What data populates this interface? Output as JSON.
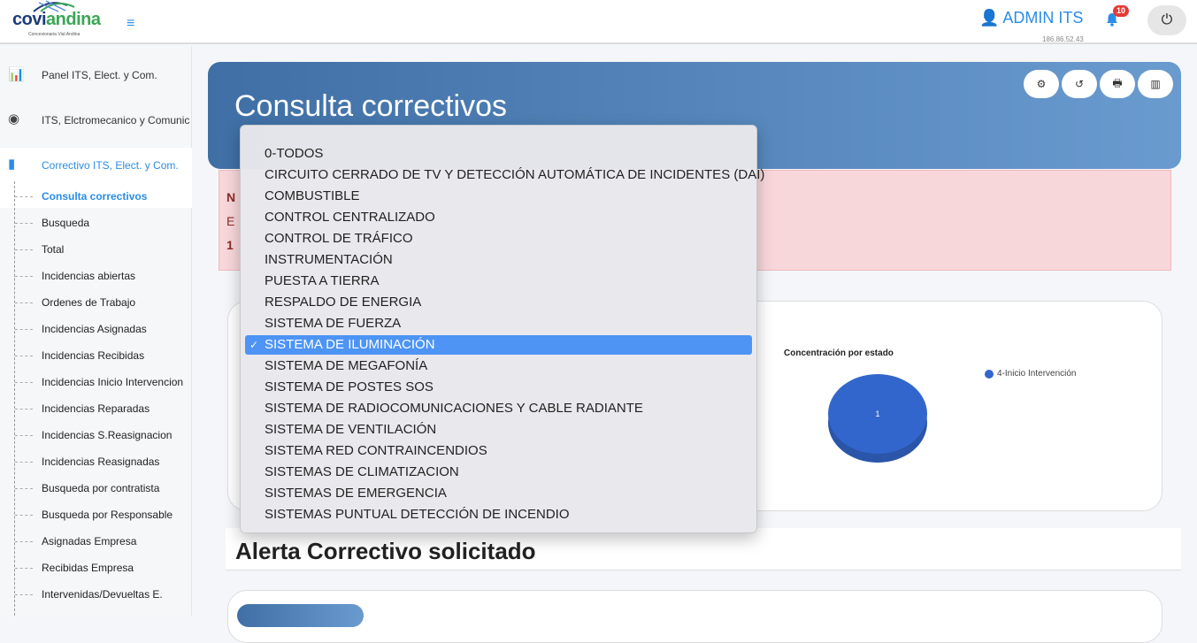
{
  "header": {
    "logo_text": "coviandina",
    "logo_subtitle": "Concesionaria Vial Andina",
    "user": "ADMIN ITS",
    "ip": "186.86.52.43",
    "notifications": "10"
  },
  "sidebar": {
    "top_items": [
      {
        "label": "Panel ITS, Elect. y Com.",
        "icon": "bar-chart-icon"
      },
      {
        "label": "ITS, Elctromecanico y Comunicaciones",
        "icon": "podcast-icon"
      }
    ],
    "active_section": {
      "label": "Correctivo ITS, Elect. y Com.",
      "icon": "tablet-icon"
    },
    "sub_items": [
      "Consulta correctivos",
      "Busqueda",
      "Total",
      "Incidencias abiertas",
      "Ordenes de Trabajo",
      "Incidencias Asignadas",
      "Incidencias Recibidas",
      "Incidencias Inicio Intervencion",
      "Incidencias Reparadas",
      "Incidencias S.Reasignacion",
      "Incidencias Reasignadas",
      "Busqueda por contratista",
      "Busqueda por Responsable",
      "Asignadas Empresa",
      "Recibidas Empresa",
      "Intervenidas/Devueltas E."
    ]
  },
  "page": {
    "title": "Consulta correctivos",
    "alert_lines": [
      "N",
      "E",
      "1"
    ],
    "section_title": "Alerta Correctivo solicitado"
  },
  "chart_data": {
    "type": "pie",
    "title": "Concentración por estado",
    "categories": [
      "4-Inicio Intervención"
    ],
    "values": [
      1
    ],
    "colors": [
      "#3366cc"
    ],
    "legend": "right"
  },
  "dropdown": {
    "selected": "SISTEMA DE ILUMINACIÓN",
    "options": [
      "0-TODOS",
      "CIRCUITO CERRADO DE TV Y DETECCIÓN AUTOMÁTICA DE INCIDENTES (DAI)",
      "COMBUSTIBLE",
      "CONTROL CENTRALIZADO",
      "CONTROL DE TRÁFICO",
      "INSTRUMENTACIÓN",
      "PUESTA A TIERRA",
      "RESPALDO DE ENERGIA",
      "SISTEMA DE FUERZA",
      "SISTEMA DE ILUMINACIÓN",
      "SISTEMA DE MEGAFONÍA",
      "SISTEMA DE POSTES SOS",
      "SISTEMA DE RADIOCOMUNICACIONES Y CABLE RADIANTE",
      "SISTEMA DE VENTILACIÓN",
      "SISTEMA RED CONTRAINCENDIOS",
      "SISTEMAS DE CLIMATIZACION",
      "SISTEMAS DE EMERGENCIA",
      "SISTEMAS PUNTUAL DETECCIÓN DE INCENDIO"
    ]
  }
}
